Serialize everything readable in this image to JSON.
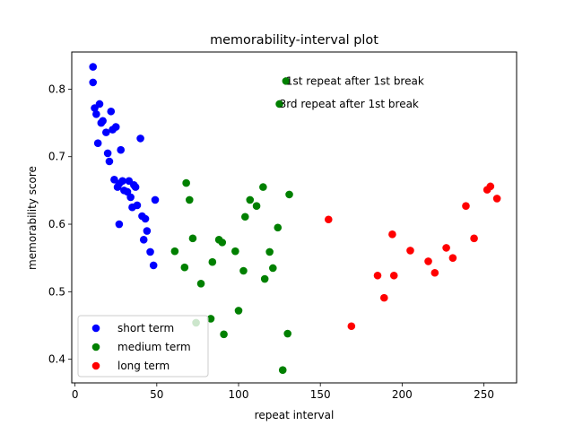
{
  "chart_data": {
    "type": "scatter",
    "title": "memorability-interval plot",
    "xlabel": "repeat interval",
    "ylabel": "memorability score",
    "xlim": [
      -2,
      270
    ],
    "ylim": [
      0.365,
      0.855
    ],
    "x_ticks": [
      0,
      50,
      100,
      150,
      200,
      250
    ],
    "y_ticks": [
      0.4,
      0.5,
      0.6,
      0.7,
      0.8
    ],
    "x_tick_labels": [
      "0",
      "50",
      "100",
      "150",
      "200",
      "250"
    ],
    "y_tick_labels": [
      "0.4",
      "0.5",
      "0.6",
      "0.7",
      "0.8"
    ],
    "grid": false,
    "legend_position": "lower-left",
    "series": [
      {
        "name": "short term",
        "color": "#0000ff",
        "points": [
          [
            11,
            0.833
          ],
          [
            11,
            0.81
          ],
          [
            12,
            0.772
          ],
          [
            13,
            0.763
          ],
          [
            15,
            0.778
          ],
          [
            14,
            0.72
          ],
          [
            16,
            0.75
          ],
          [
            17,
            0.753
          ],
          [
            19,
            0.736
          ],
          [
            22,
            0.767
          ],
          [
            23,
            0.74
          ],
          [
            25,
            0.744
          ],
          [
            20,
            0.705
          ],
          [
            21,
            0.693
          ],
          [
            28,
            0.71
          ],
          [
            40,
            0.727
          ],
          [
            24,
            0.666
          ],
          [
            27,
            0.66
          ],
          [
            26,
            0.655
          ],
          [
            29,
            0.664
          ],
          [
            30,
            0.65
          ],
          [
            33,
            0.664
          ],
          [
            32,
            0.648
          ],
          [
            34,
            0.64
          ],
          [
            36,
            0.658
          ],
          [
            37,
            0.655
          ],
          [
            35,
            0.625
          ],
          [
            38,
            0.628
          ],
          [
            41,
            0.612
          ],
          [
            43,
            0.608
          ],
          [
            49,
            0.636
          ],
          [
            27,
            0.6
          ],
          [
            44,
            0.59
          ],
          [
            42,
            0.577
          ],
          [
            46,
            0.559
          ],
          [
            48,
            0.539
          ]
        ]
      },
      {
        "name": "medium term",
        "color": "#008000",
        "points": [
          [
            129,
            0.812
          ],
          [
            125,
            0.778
          ],
          [
            68,
            0.661
          ],
          [
            70,
            0.636
          ],
          [
            61,
            0.56
          ],
          [
            67,
            0.536
          ],
          [
            72,
            0.579
          ],
          [
            77,
            0.512
          ],
          [
            74,
            0.454
          ],
          [
            83,
            0.46
          ],
          [
            84,
            0.544
          ],
          [
            88,
            0.577
          ],
          [
            90,
            0.573
          ],
          [
            91,
            0.437
          ],
          [
            98,
            0.56
          ],
          [
            100,
            0.472
          ],
          [
            103,
            0.531
          ],
          [
            104,
            0.611
          ],
          [
            107,
            0.636
          ],
          [
            111,
            0.627
          ],
          [
            115,
            0.655
          ],
          [
            116,
            0.519
          ],
          [
            119,
            0.559
          ],
          [
            121,
            0.535
          ],
          [
            124,
            0.595
          ],
          [
            131,
            0.644
          ],
          [
            130,
            0.438
          ],
          [
            127,
            0.384
          ]
        ]
      },
      {
        "name": "long term",
        "color": "#ff0000",
        "points": [
          [
            155,
            0.607
          ],
          [
            169,
            0.449
          ],
          [
            185,
            0.524
          ],
          [
            189,
            0.491
          ],
          [
            194,
            0.585
          ],
          [
            195,
            0.524
          ],
          [
            205,
            0.561
          ],
          [
            216,
            0.545
          ],
          [
            220,
            0.528
          ],
          [
            227,
            0.565
          ],
          [
            231,
            0.55
          ],
          [
            239,
            0.627
          ],
          [
            244,
            0.579
          ],
          [
            252,
            0.651
          ],
          [
            254,
            0.656
          ],
          [
            258,
            0.638
          ]
        ]
      }
    ],
    "annotations": [
      {
        "text": "1st repeat after 1st break",
        "x": 129,
        "y": 0.812
      },
      {
        "text": "3rd repeat after 1st break",
        "x": 125,
        "y": 0.778
      }
    ]
  }
}
